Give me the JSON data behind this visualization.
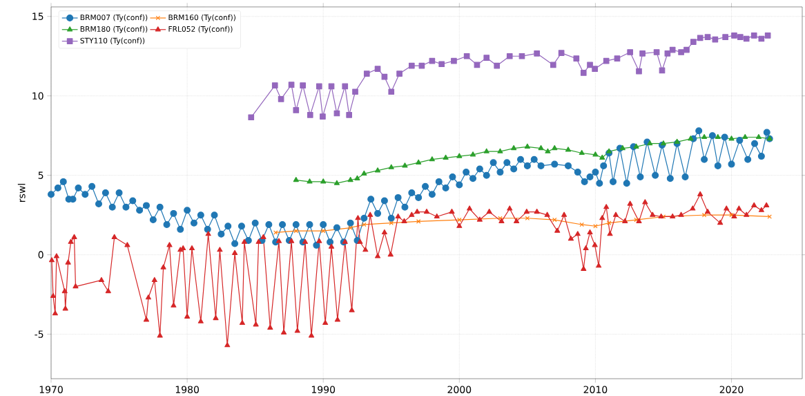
{
  "chart_data": {
    "type": "line",
    "ylabel": "rswl",
    "xlim": [
      1970,
      2025.2
    ],
    "ylim": [
      -7.8,
      15.6
    ],
    "xticks": [
      1970,
      1980,
      1990,
      2000,
      2010,
      2020
    ],
    "yticks": [
      -5,
      0,
      5,
      10,
      15
    ],
    "grid": true,
    "legend": "top left",
    "series": [
      {
        "name": "BRM007 (Ty(conf))",
        "color": "#1f77b4",
        "marker": "circle",
        "x": [
          1970.0,
          1970.5,
          1970.9,
          1971.3,
          1971.6,
          1972.0,
          1972.5,
          1973.0,
          1973.5,
          1974.0,
          1974.5,
          1975.0,
          1975.5,
          1976.0,
          1976.5,
          1977.0,
          1977.5,
          1978.0,
          1978.5,
          1979.0,
          1979.5,
          1980.0,
          1980.5,
          1981.0,
          1981.5,
          1982.0,
          1982.5,
          1983.0,
          1983.5,
          1984.0,
          1984.5,
          1985.0,
          1985.5,
          1986.0,
          1986.5,
          1987.0,
          1987.5,
          1988.0,
          1988.5,
          1989.0,
          1989.5,
          1990.0,
          1990.5,
          1991.0,
          1991.5,
          1992.0,
          1992.5,
          1993.0,
          1993.5,
          1994.0,
          1994.5,
          1995.0,
          1995.5,
          1996.0,
          1996.5,
          1997.0,
          1997.5,
          1998.0,
          1998.5,
          1999.0,
          1999.5,
          2000.0,
          2000.5,
          2001.0,
          2001.5,
          2002.0,
          2002.5,
          2003.0,
          2003.5,
          2004.0,
          2004.5,
          2005.0,
          2005.5,
          2006.0,
          2007.0,
          2008.0,
          2008.7,
          2009.2,
          2009.6,
          2010.0,
          2010.3,
          2010.6,
          2011.0,
          2011.3,
          2011.8,
          2012.3,
          2012.8,
          2013.3,
          2013.8,
          2014.4,
          2014.9,
          2015.5,
          2016.0,
          2016.6,
          2017.2,
          2017.6,
          2018.0,
          2018.6,
          2019.0,
          2019.5,
          2020.0,
          2020.6,
          2021.2,
          2021.7,
          2022.2,
          2022.6,
          2022.8
        ],
        "values": [
          3.8,
          4.2,
          4.6,
          3.5,
          3.5,
          4.2,
          3.8,
          4.3,
          3.2,
          3.9,
          3.0,
          3.9,
          3.0,
          3.4,
          2.8,
          3.1,
          2.2,
          3.0,
          1.9,
          2.6,
          1.6,
          2.8,
          2.0,
          2.5,
          1.6,
          2.5,
          1.3,
          1.8,
          0.7,
          1.8,
          0.9,
          2.0,
          0.9,
          1.9,
          0.8,
          1.9,
          0.9,
          1.9,
          0.8,
          1.9,
          0.6,
          1.9,
          0.8,
          1.7,
          0.8,
          2.0,
          0.9,
          2.3,
          3.5,
          2.6,
          3.4,
          2.3,
          3.6,
          3.0,
          3.9,
          3.6,
          4.3,
          3.8,
          4.6,
          4.2,
          4.9,
          4.4,
          5.2,
          4.8,
          5.4,
          5.0,
          5.8,
          5.2,
          5.8,
          5.4,
          6.0,
          5.6,
          6.0,
          5.6,
          5.7,
          5.6,
          5.2,
          4.6,
          4.9,
          5.2,
          4.5,
          5.6,
          6.4,
          4.6,
          6.7,
          4.5,
          6.8,
          4.9,
          7.1,
          5.0,
          6.9,
          4.8,
          7.0,
          4.9,
          7.3,
          7.8,
          6.0,
          7.5,
          5.6,
          7.4,
          5.7,
          7.2,
          6.0,
          7.0,
          6.2,
          7.7,
          7.3
        ]
      },
      {
        "name": "BRM160 (Ty(conf))",
        "color": "#ff7f0e",
        "marker": "cross",
        "x": [
          1986.5,
          1988,
          1990,
          1992,
          1993,
          1995,
          1997,
          2000,
          2003,
          2005,
          2007,
          2009,
          2010,
          2011,
          2013,
          2015,
          2018,
          2020,
          2022.8
        ],
        "values": [
          1.4,
          1.5,
          1.5,
          1.7,
          1.9,
          2.0,
          2.1,
          2.2,
          2.3,
          2.3,
          2.2,
          1.9,
          1.8,
          2.0,
          2.2,
          2.4,
          2.5,
          2.5,
          2.4
        ]
      },
      {
        "name": "BRM180 (Ty(conf))",
        "color": "#2ca02c",
        "marker": "triangle",
        "x": [
          1988,
          1989,
          1990,
          1991,
          1992,
          1992.5,
          1993,
          1994,
          1995,
          1996,
          1997,
          1998,
          1999,
          2000,
          2001,
          2002,
          2003,
          2004,
          2005,
          2006,
          2006.5,
          2007,
          2008,
          2009,
          2010,
          2010.5,
          2011,
          2012,
          2013,
          2014,
          2015,
          2016,
          2017,
          2018,
          2019,
          2020,
          2021,
          2022,
          2022.8
        ],
        "values": [
          4.7,
          4.6,
          4.6,
          4.5,
          4.7,
          4.8,
          5.1,
          5.3,
          5.5,
          5.6,
          5.8,
          6.0,
          6.1,
          6.2,
          6.3,
          6.5,
          6.5,
          6.7,
          6.8,
          6.7,
          6.5,
          6.7,
          6.6,
          6.4,
          6.3,
          6.1,
          6.5,
          6.7,
          6.8,
          7.0,
          7.0,
          7.1,
          7.3,
          7.4,
          7.4,
          7.3,
          7.4,
          7.4,
          7.3
        ]
      },
      {
        "name": "FRL052 (Ty(conf))",
        "color": "#d62728",
        "marker": "triangle down",
        "x": [
          1970.05,
          1970.15,
          1970.3,
          1970.4,
          1971.0,
          1971.05,
          1971.25,
          1971.45,
          1971.7,
          1971.8,
          1973.7,
          1974.2,
          1974.65,
          1975.6,
          1977.0,
          1977.15,
          1977.6,
          1978.0,
          1978.25,
          1978.7,
          1979.0,
          1979.5,
          1979.7,
          1980.0,
          1980.35,
          1981.0,
          1981.55,
          1982.1,
          1982.4,
          1982.95,
          1983.5,
          1984.05,
          1984.2,
          1985.05,
          1985.25,
          1985.6,
          1986.1,
          1986.74,
          1987.1,
          1987.66,
          1988.1,
          1988.67,
          1989.13,
          1989.7,
          1990.15,
          1990.6,
          1991.05,
          1991.6,
          1992.1,
          1992.55,
          1992.7,
          1993.1,
          1993.45,
          1994.0,
          1994.5,
          1994.95,
          1995.5,
          1995.95,
          1996.5,
          1996.9,
          1997.6,
          1998.35,
          1999.45,
          2000.0,
          2000.75,
          2001.5,
          2002.2,
          2003.1,
          2003.7,
          2004.2,
          2004.95,
          2005.7,
          2006.46,
          2007.2,
          2007.7,
          2008.2,
          2008.7,
          2009.13,
          2009.3,
          2009.6,
          2009.96,
          2010.24,
          2010.5,
          2010.8,
          2011.07,
          2011.5,
          2012.17,
          2012.55,
          2013.2,
          2013.65,
          2014.2,
          2014.83,
          2015.67,
          2016.3,
          2017.15,
          2017.7,
          2018.25,
          2019.17,
          2019.63,
          2020.2,
          2020.55,
          2021.1,
          2021.66,
          2022.2,
          2022.57
        ],
        "values": [
          -0.35,
          -2.6,
          -3.7,
          -0.1,
          -2.3,
          -3.4,
          -0.5,
          0.8,
          1.1,
          -2.0,
          -1.6,
          -2.3,
          1.1,
          0.6,
          -4.1,
          -2.7,
          -1.6,
          -5.1,
          -0.8,
          0.6,
          -3.2,
          0.3,
          0.4,
          -3.9,
          0.4,
          -4.2,
          1.3,
          -4.0,
          0.3,
          -5.7,
          0.1,
          -4.3,
          0.8,
          -4.4,
          0.8,
          1.1,
          -4.6,
          0.85,
          -4.9,
          0.85,
          -4.8,
          0.8,
          -5.1,
          0.85,
          -4.3,
          0.5,
          -4.1,
          0.8,
          -3.5,
          2.3,
          0.8,
          0.3,
          2.5,
          -0.1,
          1.4,
          0.0,
          2.4,
          2.1,
          2.5,
          2.7,
          2.7,
          2.4,
          2.7,
          1.8,
          2.9,
          2.2,
          2.7,
          2.1,
          2.9,
          2.1,
          2.7,
          2.7,
          2.5,
          1.5,
          2.5,
          1.0,
          1.3,
          -0.9,
          0.4,
          1.4,
          0.6,
          -0.7,
          2.3,
          3.0,
          1.3,
          2.5,
          2.1,
          3.2,
          2.1,
          3.3,
          2.5,
          2.4,
          2.4,
          2.5,
          2.9,
          3.8,
          2.7,
          2.0,
          2.9,
          2.4,
          2.9,
          2.5,
          3.1,
          2.8,
          3.1
        ]
      },
      {
        "name": "STY110 (Ty(conf))",
        "color": "#9467bd",
        "marker": "square",
        "x": [
          1984.7,
          1986.45,
          1986.9,
          1987.66,
          1988.0,
          1988.5,
          1989.04,
          1989.7,
          1989.96,
          1990.6,
          1991.0,
          1991.6,
          1991.9,
          1992.35,
          1993.2,
          1994.0,
          1994.5,
          1995.0,
          1995.6,
          1996.5,
          1997.24,
          1998.0,
          1998.7,
          1999.6,
          2000.55,
          2001.3,
          2002.0,
          2002.76,
          2003.7,
          2004.6,
          2005.7,
          2006.9,
          2007.5,
          2008.6,
          2009.13,
          2009.6,
          2009.96,
          2010.8,
          2011.6,
          2012.55,
          2013.2,
          2013.46,
          2014.5,
          2014.9,
          2015.3,
          2015.67,
          2016.3,
          2016.7,
          2017.2,
          2017.7,
          2018.25,
          2018.8,
          2019.55,
          2020.2,
          2020.65,
          2021.1,
          2021.66,
          2022.2,
          2022.67
        ],
        "values": [
          8.65,
          10.66,
          9.8,
          10.7,
          9.1,
          10.66,
          8.8,
          10.6,
          8.7,
          10.6,
          8.9,
          10.6,
          8.8,
          10.26,
          11.4,
          11.7,
          11.2,
          10.26,
          11.4,
          11.9,
          11.9,
          12.2,
          12.0,
          12.2,
          12.5,
          11.95,
          12.4,
          11.9,
          12.5,
          12.5,
          12.67,
          11.95,
          12.7,
          12.35,
          11.45,
          11.95,
          11.7,
          12.2,
          12.35,
          12.75,
          11.55,
          12.67,
          12.75,
          11.6,
          12.67,
          12.9,
          12.75,
          12.9,
          13.4,
          13.65,
          13.7,
          13.55,
          13.7,
          13.8,
          13.7,
          13.6,
          13.8,
          13.6,
          13.8
        ]
      }
    ]
  }
}
